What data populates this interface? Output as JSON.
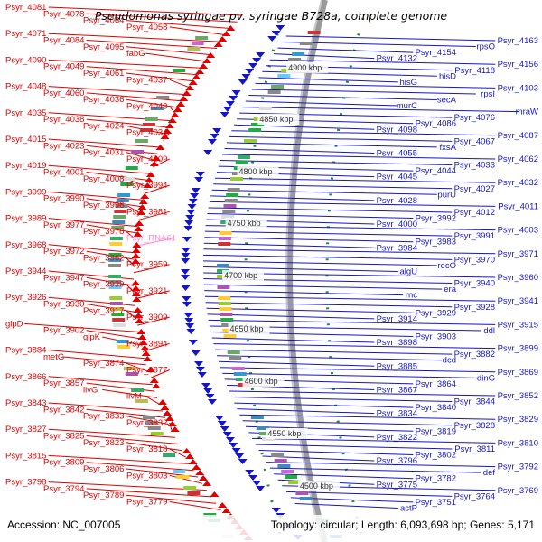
{
  "title": "Pseudomonas syringae pv. syringae B728a, complete genome",
  "accession": "Accession: NC_007005",
  "summary": "Topology: circular; Length: 6,093,698 bp; Genes: 5,171",
  "colors": {
    "forward": "#e00000",
    "reverse": "#1515c8",
    "rna": "#ff88cc",
    "backbone": "#9a9a9a",
    "tick": "#2a8a2a"
  },
  "kbp_labels": [
    "4900 kbp",
    "4850 kbp",
    "4800 kbp",
    "4750 kbp",
    "4700 kbp",
    "4650 kbp",
    "4600 kbp",
    "4550 kbp",
    "4500 kbp"
  ],
  "left_labels": [
    "Psyr_4081",
    "Psyr_4078",
    "Psyr_4064",
    "Psyr_4058",
    "Psyr_4071",
    "Psyr_4084",
    "Psyr_4095",
    "fabG",
    "Psyr_4090",
    "Psyr_4049",
    "Psyr_4061",
    "Psyr_4037",
    "Psyr_4048",
    "Psyr_4060",
    "Psyr_4036",
    "Psyr_4043",
    "Psyr_4035",
    "Psyr_4038",
    "Psyr_4024",
    "Psyr_4034",
    "Psyr_4015",
    "Psyr_4023",
    "Psyr_4031",
    "Psyr_4009",
    "Psyr_4019",
    "Psyr_4001",
    "Psyr_4008",
    "Psyr_3994",
    "Psyr_3999",
    "Psyr_3990",
    "Psyr_3996",
    "Psyr_3981",
    "Psyr_3989",
    "Psyr_3977",
    "Psyr_3978",
    "Psyr_RNA61",
    "Psyr_3968",
    "Psyr_3972",
    "Psyr_3962",
    "Psyr_3959",
    "Psyr_3944",
    "Psyr_3947",
    "Psyr_3939",
    "Psyr_3921",
    "Psyr_3926",
    "Psyr_3930",
    "Psyr_3917",
    "Psyr_3909",
    "glpD",
    "Psyr_3902",
    "glpK",
    "Psyr_3894",
    "Psyr_3884",
    "metG",
    "Psyr_3874",
    "Psyr_3877",
    "Psyr_3866",
    "Psyr_3857",
    "livG",
    "livM",
    "Psyr_3843",
    "Psyr_3842",
    "Psyr_3833",
    "Psyr_3832",
    "Psyr_3827",
    "Psyr_3825",
    "Psyr_3823",
    "Psyr_3818",
    "Psyr_3815",
    "Psyr_3809",
    "Psyr_3806",
    "Psyr_3803",
    "Psyr_3798",
    "Psyr_3794",
    "Psyr_3789",
    "Psyr_3779"
  ],
  "right_labels": [
    "Psyr_4163",
    "rpsO",
    "Psyr_4154",
    "Psyr_4132",
    "Psyr_4156",
    "Psyr_4118",
    "hisD",
    "hisG",
    "Psyr_4103",
    "rpsI",
    "secA",
    "murC",
    "mraW",
    "Psyr_4076",
    "Psyr_4086",
    "Psyr_4098",
    "Psyr_4087",
    "Psyr_4067",
    "fxsA",
    "Psyr_4055",
    "Psyr_4062",
    "Psyr_4033",
    "Psyr_4044",
    "Psyr_4045",
    "Psyr_4032",
    "Psyr_4027",
    "purU",
    "Psyr_4028",
    "Psyr_4011",
    "Psyr_4012",
    "Psyr_3992",
    "Psyr_4000",
    "Psyr_4003",
    "Psyr_3991",
    "Psyr_3983",
    "Psyr_3984",
    "Psyr_3971",
    "Psyr_3970",
    "recO",
    "algU",
    "Psyr_3960",
    "Psyr_3940",
    "era",
    "rnc",
    "Psyr_3941",
    "Psyr_3928",
    "Psyr_3929",
    "Psyr_3914",
    "Psyr_3915",
    "ddl",
    "Psyr_3903",
    "Psyr_3898",
    "Psyr_3899",
    "Psyr_3882",
    "dcd",
    "Psyr_3885",
    "Psyr_3869",
    "dinG",
    "Psyr_3864",
    "Psyr_3867",
    "Psyr_3852",
    "Psyr_3844",
    "Psyr_3840",
    "Psyr_3834",
    "Psyr_3829",
    "Psyr_3828",
    "Psyr_3819",
    "Psyr_3822",
    "Psyr_3810",
    "Psyr_3811",
    "Psyr_3802",
    "Psyr_3796",
    "Psyr_3792",
    "def",
    "Psyr_3782",
    "Psyr_3775",
    "Psyr_3769",
    "Psyr_3764",
    "Psyr_3751",
    "actP"
  ]
}
